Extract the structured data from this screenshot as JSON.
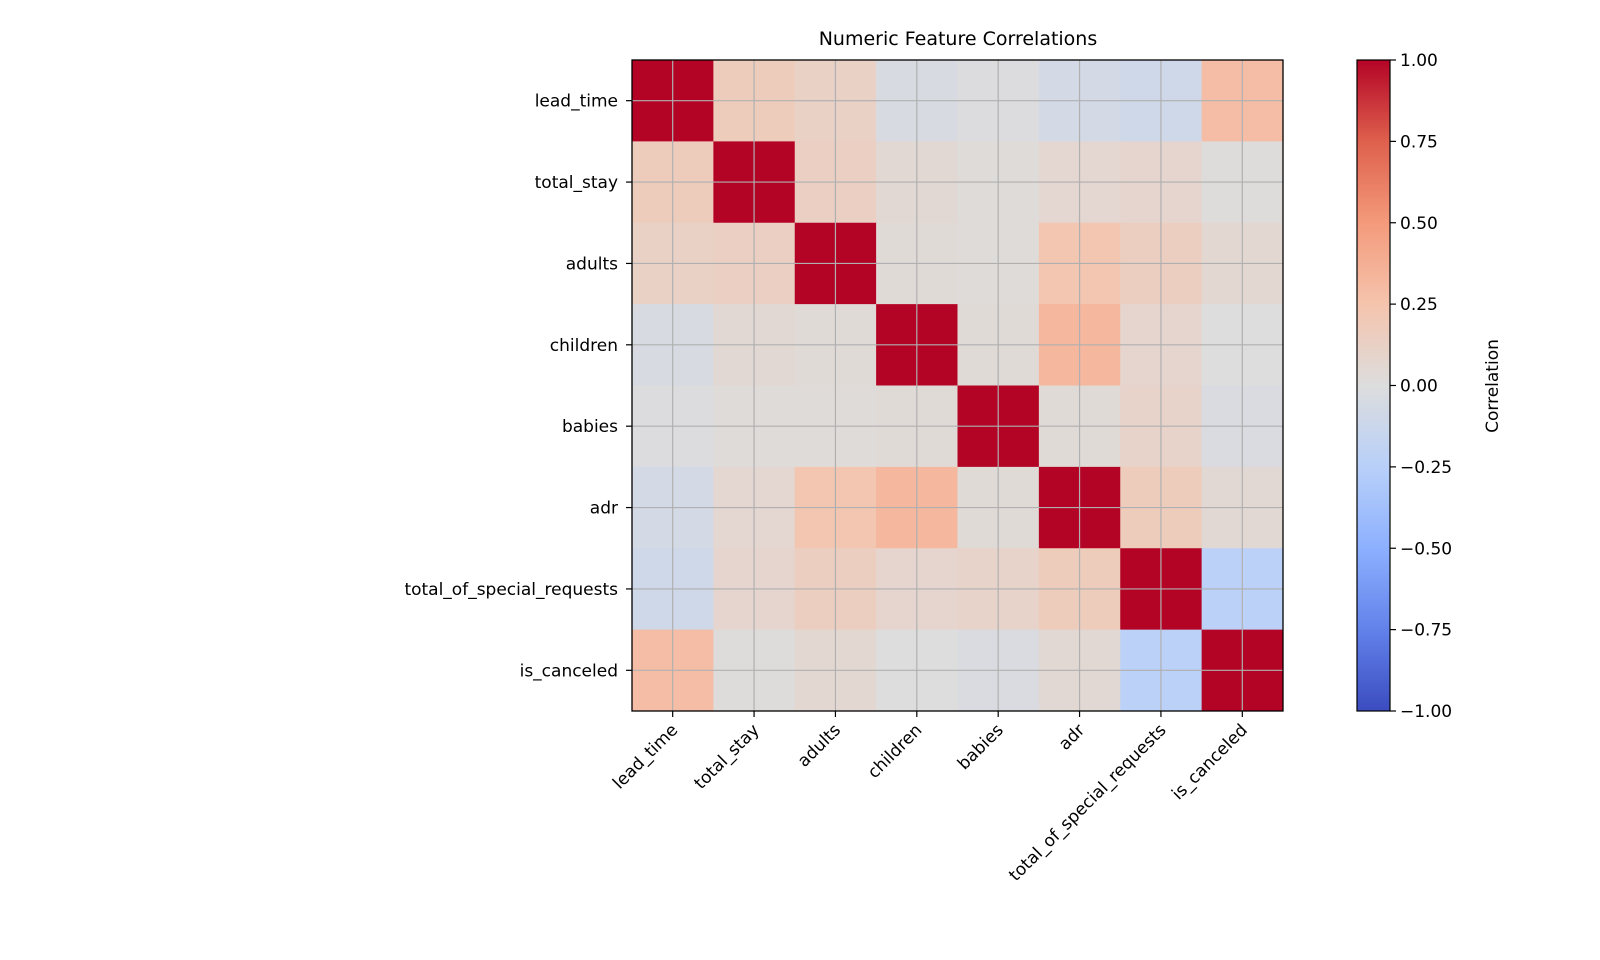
{
  "chart_data": {
    "type": "heatmap",
    "title": "Numeric Feature Correlations",
    "labels": [
      "lead_time",
      "total_stay",
      "adults",
      "children",
      "babies",
      "adr",
      "total_of_special_requests",
      "is_canceled"
    ],
    "matrix": [
      [
        1.0,
        0.17,
        0.12,
        -0.04,
        -0.01,
        -0.07,
        -0.1,
        0.29
      ],
      [
        0.17,
        1.0,
        0.14,
        0.05,
        0.02,
        0.07,
        0.08,
        0.01
      ],
      [
        0.12,
        0.14,
        1.0,
        0.03,
        0.02,
        0.23,
        0.15,
        0.06
      ],
      [
        -0.04,
        0.05,
        0.03,
        1.0,
        0.03,
        0.33,
        0.08,
        0.0
      ],
      [
        -0.01,
        0.02,
        0.02,
        0.03,
        1.0,
        0.03,
        0.1,
        -0.03
      ],
      [
        -0.07,
        0.07,
        0.23,
        0.33,
        0.03,
        1.0,
        0.17,
        0.05
      ],
      [
        -0.1,
        0.08,
        0.15,
        0.08,
        0.1,
        0.17,
        1.0,
        -0.23
      ],
      [
        0.29,
        0.01,
        0.06,
        0.0,
        -0.03,
        0.05,
        -0.23,
        1.0
      ]
    ],
    "colormap": "coolwarm",
    "vmin": -1.0,
    "vmax": 1.0,
    "grid": true,
    "colorbar": {
      "label": "Correlation",
      "ticks": [
        "1.00",
        "0.75",
        "0.50",
        "0.25",
        "0.00",
        "−0.25",
        "−0.50",
        "−0.75",
        "−1.00"
      ],
      "tick_values": [
        1.0,
        0.75,
        0.5,
        0.25,
        0.0,
        -0.25,
        -0.5,
        -0.75,
        -1.0
      ],
      "placement": "right"
    }
  }
}
